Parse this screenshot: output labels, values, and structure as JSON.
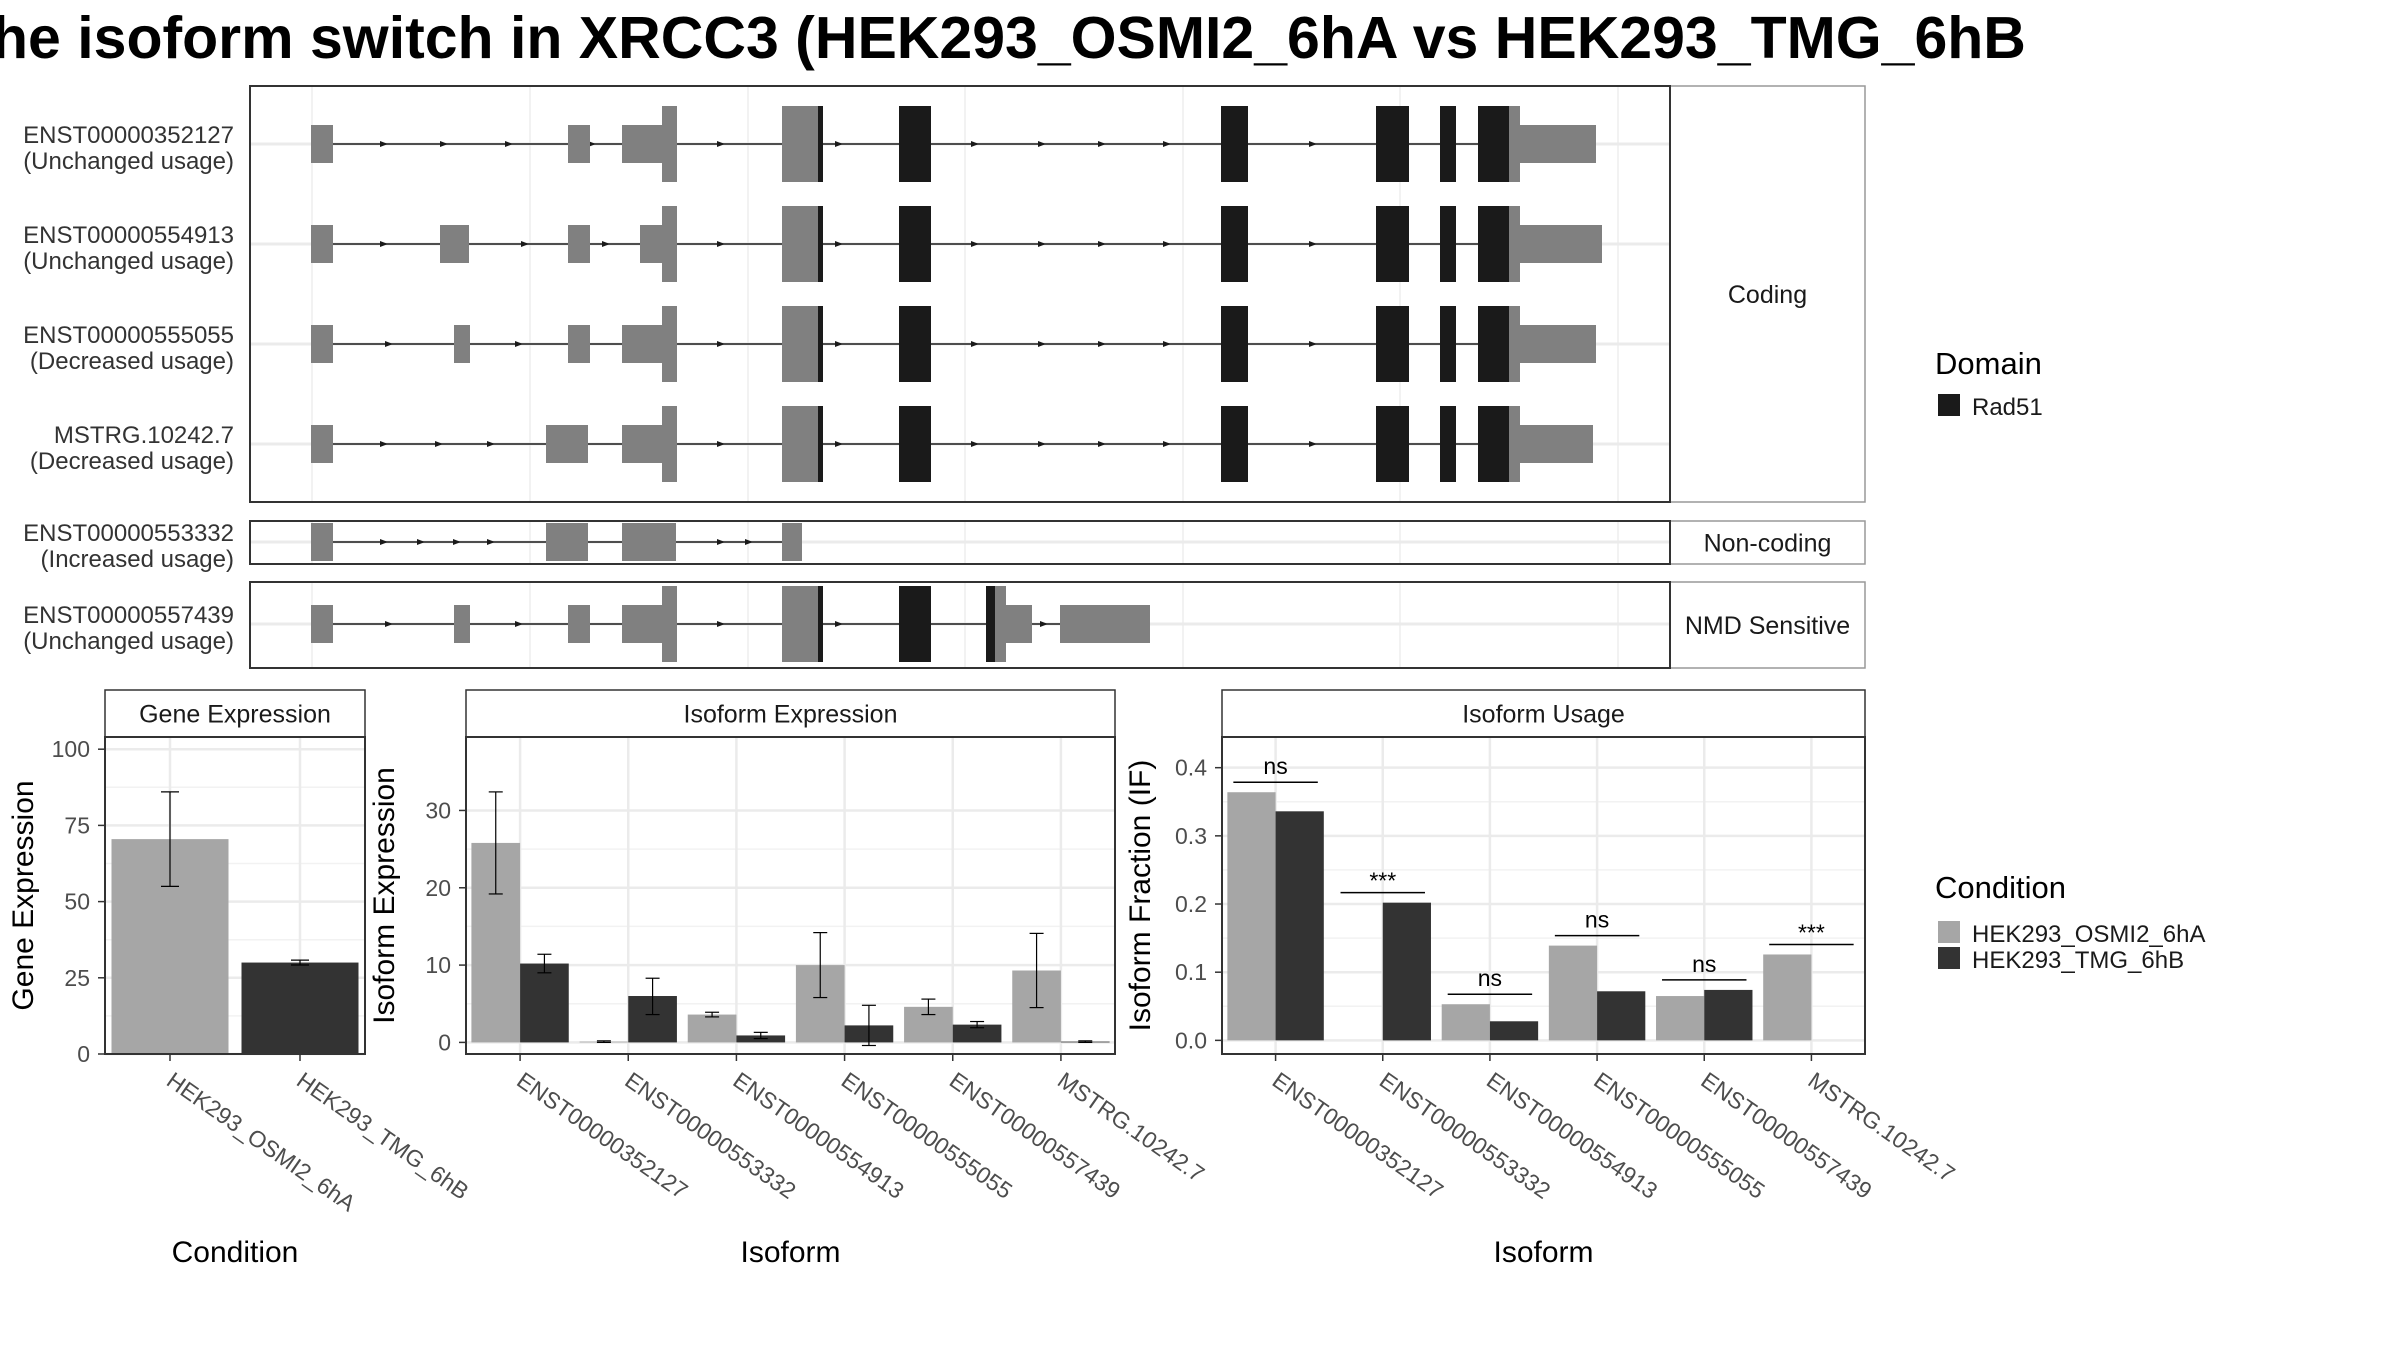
{
  "title": "he isoform switch in XRCC3 (HEK293_OSMI2_6hA vs HEK293_TMG_6hB",
  "colors": {
    "utr": "#808080",
    "domain": "#1a1a1a",
    "cond1": "#a6a6a6",
    "cond2": "#333333",
    "grid": "#ebebeb",
    "panel_border": "#333333",
    "strip_border": "#999999"
  },
  "structure": {
    "facets": [
      "Coding",
      "Non-coding",
      "NMD Sensitive"
    ],
    "isoforms": [
      {
        "id": "ENST00000352127",
        "usage": "(Unchanged usage)",
        "facet": 0
      },
      {
        "id": "ENST00000554913",
        "usage": "(Unchanged usage)",
        "facet": 0
      },
      {
        "id": "ENST00000555055",
        "usage": "(Decreased usage)",
        "facet": 0
      },
      {
        "id": "MSTRG.10242.7",
        "usage": "(Decreased usage)",
        "facet": 0
      },
      {
        "id": "ENST00000553332",
        "usage": "(Increased usage)",
        "facet": 1
      },
      {
        "id": "ENST00000557439",
        "usage": "(Unchanged usage)",
        "facet": 2
      }
    ]
  },
  "legend_domain": {
    "title": "Domain",
    "items": [
      {
        "label": "Rad51",
        "color": "#1a1a1a"
      }
    ]
  },
  "legend_condition": {
    "title": "Condition",
    "items": [
      {
        "label": "HEK293_OSMI2_6hA",
        "color": "#a6a6a6"
      },
      {
        "label": "HEK293_TMG_6hB",
        "color": "#333333"
      }
    ]
  },
  "chart_data": [
    {
      "type": "bar",
      "title": "Gene Expression",
      "xlabel": "Condition",
      "ylabel": "Gene Expression",
      "categories": [
        "HEK293_OSMI2_6hA",
        "HEK293_TMG_6hB"
      ],
      "values": [
        70.5,
        30
      ],
      "error": [
        [
          55,
          86
        ],
        [
          29.2,
          30.8
        ]
      ],
      "ylim": [
        0,
        104
      ],
      "yticks": [
        0,
        25,
        50,
        75,
        100
      ]
    },
    {
      "type": "bar",
      "title": "Isoform Expression",
      "xlabel": "Isoform",
      "ylabel": "Isoform Expression",
      "categories": [
        "ENST00000352127",
        "ENST00000553332",
        "ENST00000554913",
        "ENST00000555055",
        "ENST00000557439",
        "MSTRG.10242.7"
      ],
      "series": [
        {
          "name": "HEK293_OSMI2_6hA",
          "values": [
            25.8,
            0.1,
            3.6,
            10.0,
            4.6,
            9.3
          ],
          "error": [
            [
              19.2,
              32.4
            ],
            [
              0.0,
              0.2
            ],
            [
              3.3,
              3.9
            ],
            [
              5.8,
              14.2
            ],
            [
              3.6,
              5.6
            ],
            [
              4.5,
              14.1
            ]
          ]
        },
        {
          "name": "HEK293_TMG_6hB",
          "values": [
            10.2,
            6.0,
            0.9,
            2.2,
            2.3,
            0.1
          ],
          "error": [
            [
              9.0,
              11.4
            ],
            [
              3.6,
              8.3
            ],
            [
              0.5,
              1.3
            ],
            [
              -0.4,
              4.8
            ],
            [
              1.9,
              2.7
            ],
            [
              0.0,
              0.2
            ]
          ]
        }
      ],
      "ylim": [
        -1.5,
        39.5
      ],
      "yticks": [
        0,
        10,
        20,
        30
      ]
    },
    {
      "type": "bar",
      "title": "Isoform Usage",
      "xlabel": "Isoform",
      "ylabel": "Isoform Fraction (IF)",
      "categories": [
        "ENST00000352127",
        "ENST00000553332",
        "ENST00000554913",
        "ENST00000555055",
        "ENST00000557439",
        "MSTRG.10242.7"
      ],
      "series": [
        {
          "name": "HEK293_OSMI2_6hA",
          "values": [
            0.364,
            0.0,
            0.053,
            0.139,
            0.065,
            0.126
          ]
        },
        {
          "name": "HEK293_TMG_6hB",
          "values": [
            0.336,
            0.202,
            0.028,
            0.072,
            0.074,
            0.0
          ]
        }
      ],
      "significance": [
        "ns",
        "***",
        "ns",
        "ns",
        "ns",
        "***"
      ],
      "ylim": [
        -0.02,
        0.445
      ],
      "yticks": [
        "0.0",
        "0.1",
        "0.2",
        "0.3",
        "0.4"
      ]
    }
  ]
}
